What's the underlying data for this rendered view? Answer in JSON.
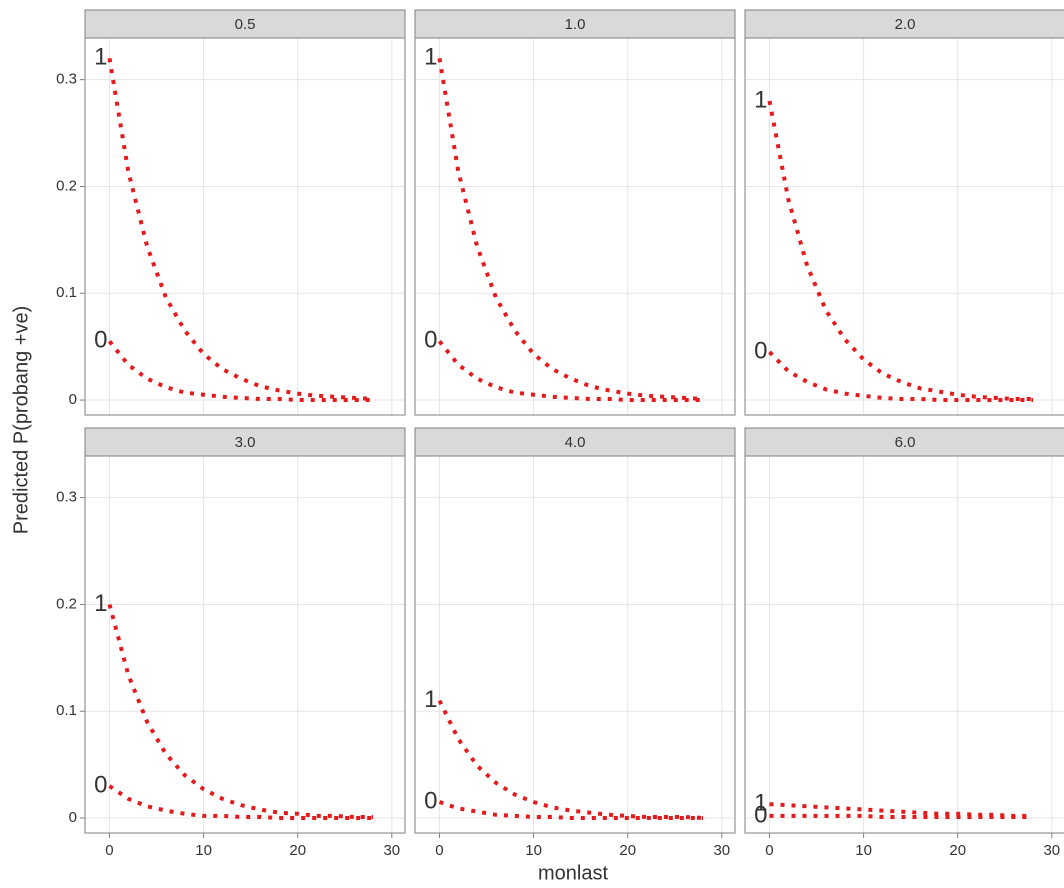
{
  "y_label": "Predicted P(probang +ve)",
  "x_label": "monlast",
  "chart_data": [
    {
      "type": "line",
      "title": "0.5",
      "x": [
        0,
        2,
        4,
        6,
        8,
        10,
        12,
        14,
        16,
        18,
        20,
        22,
        24,
        26,
        28
      ],
      "series": [
        {
          "name": "1",
          "color": "#e41a1c",
          "values": [
            0.32,
            0.214,
            0.144,
            0.096,
            0.065,
            0.043,
            0.029,
            0.02,
            0.013,
            0.009,
            0.006,
            0.004,
            0.003,
            0.002,
            0.001
          ]
        },
        {
          "name": "0",
          "color": "#e41a1c",
          "values": [
            0.055,
            0.033,
            0.02,
            0.012,
            0.007,
            0.005,
            0.003,
            0.002,
            0.001,
            0.001,
            0,
            0,
            0,
            0,
            0
          ]
        }
      ],
      "xlim": [
        -2.6,
        31.4
      ],
      "ylim": [
        -0.014,
        0.339
      ],
      "xticks": [
        0,
        10,
        20,
        30
      ],
      "yticks": [
        0.0,
        0.1,
        0.2,
        0.3
      ]
    },
    {
      "type": "line",
      "title": "1.0",
      "x": [
        0,
        2,
        4,
        6,
        8,
        10,
        12,
        14,
        16,
        18,
        20,
        22,
        24,
        26,
        28
      ],
      "series": [
        {
          "name": "1",
          "color": "#e41a1c",
          "values": [
            0.32,
            0.214,
            0.144,
            0.096,
            0.065,
            0.043,
            0.029,
            0.02,
            0.013,
            0.009,
            0.006,
            0.004,
            0.003,
            0.002,
            0.001
          ]
        },
        {
          "name": "0",
          "color": "#e41a1c",
          "values": [
            0.055,
            0.033,
            0.02,
            0.012,
            0.007,
            0.005,
            0.003,
            0.002,
            0.001,
            0.001,
            0,
            0,
            0,
            0,
            0
          ]
        }
      ],
      "xlim": [
        -2.6,
        31.4
      ],
      "ylim": [
        -0.014,
        0.339
      ],
      "xticks": [
        0,
        10,
        20,
        30
      ],
      "yticks": [
        0.0,
        0.1,
        0.2,
        0.3
      ]
    },
    {
      "type": "line",
      "title": "2.0",
      "x": [
        0,
        2,
        4,
        6,
        8,
        10,
        12,
        14,
        16,
        18,
        20,
        22,
        24,
        26,
        28
      ],
      "series": [
        {
          "name": "1",
          "color": "#e41a1c",
          "values": [
            0.28,
            0.188,
            0.126,
            0.084,
            0.057,
            0.038,
            0.025,
            0.017,
            0.011,
            0.008,
            0.005,
            0.003,
            0.002,
            0.001,
            0.001
          ]
        },
        {
          "name": "0",
          "color": "#e41a1c",
          "values": [
            0.045,
            0.027,
            0.017,
            0.01,
            0.006,
            0.004,
            0.002,
            0.001,
            0.001,
            0,
            0,
            0,
            0,
            0,
            0
          ]
        }
      ],
      "xlim": [
        -2.6,
        31.4
      ],
      "ylim": [
        -0.014,
        0.339
      ],
      "xticks": [
        0,
        10,
        20,
        30
      ],
      "yticks": [
        0.0,
        0.1,
        0.2,
        0.3
      ]
    },
    {
      "type": "line",
      "title": "3.0",
      "x": [
        0,
        2,
        4,
        6,
        8,
        10,
        12,
        14,
        16,
        18,
        20,
        22,
        24,
        26,
        28
      ],
      "series": [
        {
          "name": "1",
          "color": "#e41a1c",
          "values": [
            0.2,
            0.134,
            0.09,
            0.06,
            0.04,
            0.027,
            0.018,
            0.012,
            0.008,
            0.005,
            0.004,
            0.002,
            0.002,
            0.001,
            0.001
          ]
        },
        {
          "name": "0",
          "color": "#e41a1c",
          "values": [
            0.03,
            0.018,
            0.011,
            0.007,
            0.004,
            0.002,
            0.002,
            0.001,
            0.001,
            0,
            0,
            0,
            0,
            0,
            0
          ]
        }
      ],
      "xlim": [
        -2.6,
        31.4
      ],
      "ylim": [
        -0.014,
        0.339
      ],
      "xticks": [
        0,
        10,
        20,
        30
      ],
      "yticks": [
        0.0,
        0.1,
        0.2,
        0.3
      ]
    },
    {
      "type": "line",
      "title": "4.0",
      "x": [
        0,
        2,
        4,
        6,
        8,
        10,
        12,
        14,
        16,
        18,
        20,
        22,
        24,
        26,
        28
      ],
      "series": [
        {
          "name": "1",
          "color": "#e41a1c",
          "values": [
            0.11,
            0.074,
            0.049,
            0.033,
            0.022,
            0.015,
            0.01,
            0.007,
            0.005,
            0.003,
            0.002,
            0.001,
            0.001,
            0.001,
            0
          ]
        },
        {
          "name": "0",
          "color": "#e41a1c",
          "values": [
            0.015,
            0.009,
            0.006,
            0.003,
            0.002,
            0.001,
            0.001,
            0,
            0,
            0,
            0,
            0,
            0,
            0,
            0
          ]
        }
      ],
      "xlim": [
        -2.6,
        31.4
      ],
      "ylim": [
        -0.014,
        0.339
      ],
      "xticks": [
        0,
        10,
        20,
        30
      ],
      "yticks": [
        0.0,
        0.1,
        0.2,
        0.3
      ]
    },
    {
      "type": "line",
      "title": "6.0",
      "x": [
        0,
        2,
        4,
        6,
        8,
        10,
        12,
        14,
        16,
        18,
        20,
        22,
        24,
        26,
        28
      ],
      "series": [
        {
          "name": "1",
          "color": "#e41a1c",
          "values": [
            0.013,
            0.012,
            0.011,
            0.01,
            0.009,
            0.008,
            0.007,
            0.006,
            0.005,
            0.004,
            0.004,
            0.003,
            0.003,
            0.002,
            0.002
          ]
        },
        {
          "name": "0",
          "color": "#e41a1c",
          "values": [
            0.002,
            0.002,
            0.002,
            0.002,
            0.002,
            0.002,
            0.001,
            0.001,
            0.001,
            0.001,
            0.001,
            0.001,
            0.001,
            0.001,
            0.001
          ]
        }
      ],
      "xlim": [
        -2.6,
        31.4
      ],
      "ylim": [
        -0.014,
        0.339
      ],
      "xticks": [
        0,
        10,
        20,
        30
      ],
      "yticks": [
        0.0,
        0.1,
        0.2,
        0.3
      ]
    }
  ]
}
